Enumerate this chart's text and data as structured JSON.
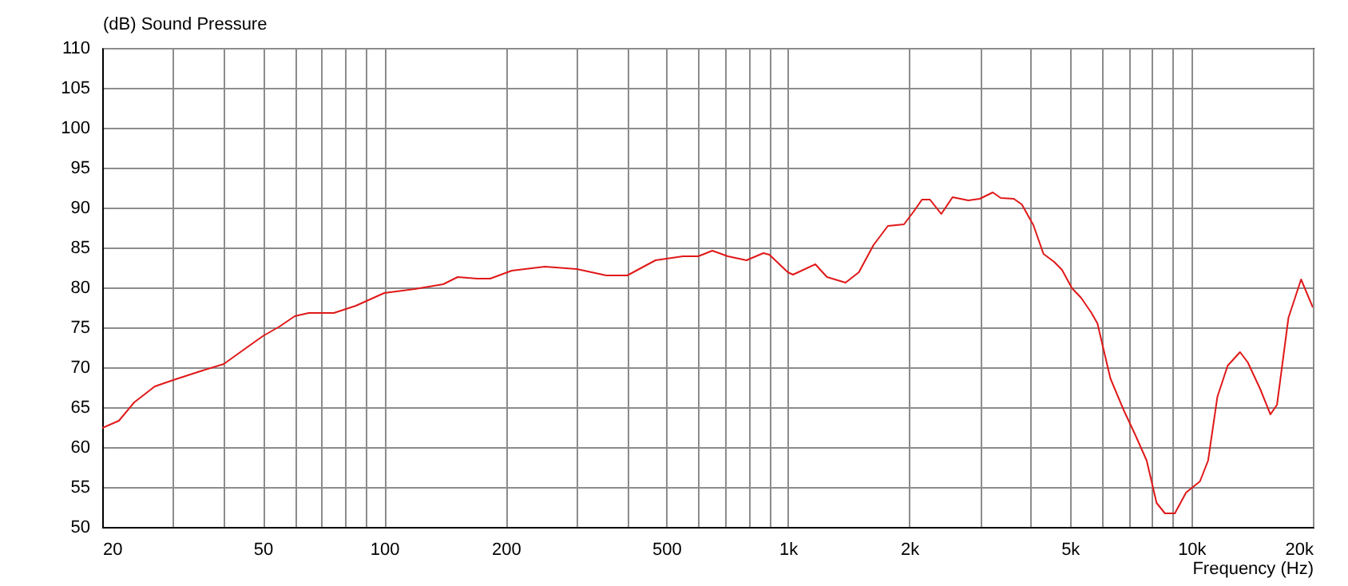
{
  "chart_data": {
    "type": "line",
    "xlabel": "Frequency  (Hz)",
    "ylabel": "(dB)  Sound Pressure",
    "log": "x",
    "grid": true,
    "marker": "none",
    "line_style": "solid",
    "xlim": [
      20,
      20000
    ],
    "ylim": [
      50,
      110
    ],
    "xticks": [
      20,
      {
        "value": 30,
        "label": null
      },
      {
        "value": 40,
        "label": null
      },
      50,
      {
        "value": 60,
        "label": null
      },
      {
        "value": 70,
        "label": null
      },
      {
        "value": 80,
        "label": null
      },
      {
        "value": 90,
        "label": null
      },
      100,
      200,
      {
        "value": 300,
        "label": null
      },
      {
        "value": 400,
        "label": null
      },
      500,
      {
        "value": 600,
        "label": null
      },
      {
        "value": 700,
        "label": null
      },
      {
        "value": 800,
        "label": null
      },
      {
        "value": 900,
        "label": null
      },
      {
        "value": 1000,
        "label": "1k"
      },
      {
        "value": 2000,
        "label": "2k"
      },
      {
        "value": 3000,
        "label": null
      },
      {
        "value": 4000,
        "label": null
      },
      {
        "value": 5000,
        "label": "5k"
      },
      {
        "value": 6000,
        "label": null
      },
      {
        "value": 7000,
        "label": null
      },
      {
        "value": 8000,
        "label": null
      },
      {
        "value": 9000,
        "label": null
      },
      {
        "value": 10000,
        "label": "10k"
      },
      {
        "value": 20000,
        "label": "20k"
      }
    ],
    "yticks": [
      50,
      55,
      60,
      65,
      70,
      75,
      80,
      85,
      90,
      95,
      100,
      105,
      110
    ],
    "x": [
      20,
      22,
      24,
      27,
      30,
      35,
      40,
      46,
      50,
      55,
      60,
      65,
      75,
      85,
      100,
      119,
      140,
      152,
      170,
      183,
      207,
      250,
      300,
      355,
      400,
      470,
      550,
      600,
      650,
      710,
      790,
      870,
      900,
      1000,
      1030,
      1170,
      1250,
      1390,
      1500,
      1630,
      1770,
      1940,
      2050,
      2150,
      2250,
      2400,
      2560,
      2800,
      2990,
      3220,
      3370,
      3630,
      3800,
      4060,
      4300,
      4570,
      4780,
      5060,
      5330,
      5640,
      5850,
      6300,
      6800,
      7250,
      7750,
      8200,
      8600,
      9100,
      9700,
      10500,
      11000,
      11600,
      12300,
      13200,
      13800,
      14800,
      15700,
      16300,
      17400,
      18700,
      20000
    ],
    "series": [
      {
        "color": "#e01818",
        "values": [
          62.4,
          63.3,
          65.6,
          67.6,
          68.4,
          69.5,
          70.4,
          72.6,
          73.9,
          75.1,
          76.4,
          76.8,
          76.8,
          77.7,
          79.3,
          79.8,
          80.4,
          81.3,
          81.1,
          81.1,
          82.1,
          82.6,
          82.3,
          81.5,
          81.5,
          83.4,
          83.9,
          83.9,
          84.6,
          83.9,
          83.4,
          84.3,
          84.1,
          81.9,
          81.6,
          82.9,
          81.3,
          80.6,
          81.9,
          85.3,
          87.7,
          87.9,
          89.5,
          91,
          91,
          89.2,
          91.3,
          90.9,
          91.1,
          91.9,
          91.2,
          91.1,
          90.4,
          87.8,
          84.2,
          83.2,
          82.2,
          79.9,
          78.7,
          76.9,
          75.5,
          68.6,
          64.6,
          61.6,
          58.3,
          53,
          51.7,
          51.7,
          54.3,
          55.7,
          58.3,
          66.3,
          70.2,
          71.9,
          70.6,
          67.3,
          64.1,
          65.3,
          76.2,
          81,
          77.5
        ]
      }
    ]
  }
}
